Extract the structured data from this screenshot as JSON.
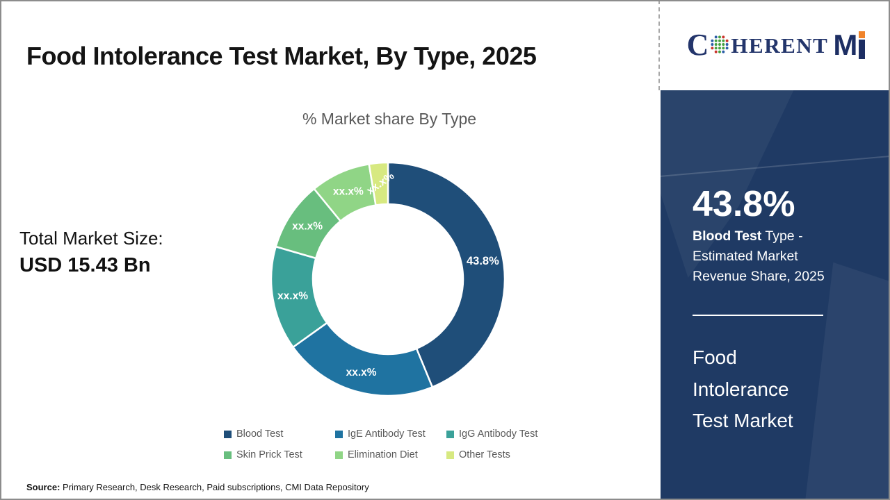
{
  "page": {
    "title": "Food Intolerance Test Market, By Type, 2025",
    "source_label": "Source:",
    "source_text": " Primary Research, Desk Research, Paid subscriptions, CMI Data Repository"
  },
  "stats": {
    "total_label": "Total Market Size:",
    "total_value": "USD 15.43 Bn"
  },
  "logo": {
    "prefix": "C",
    "suffix": "HERENT",
    "brand_bold": "M",
    "globe_icon": "dotted-globe-icon",
    "navy": "#23356b",
    "orange": "#f0832a"
  },
  "chart_data": {
    "type": "donut",
    "title": "% Market share By Type",
    "legend_position": "bottom",
    "value_labels_masked": "all segments show xx.x% except Blood Test",
    "segments": [
      {
        "label": "Blood Test",
        "display_value": "43.8%",
        "share_pct_est": 43.8,
        "color": "#1F4E79"
      },
      {
        "label": "IgE Antibody Test",
        "display_value": "xx.x%",
        "share_pct_est": 21.3,
        "color": "#1F73A1"
      },
      {
        "label": "IgG Antibody Test",
        "display_value": "xx.x%",
        "share_pct_est": 14.4,
        "color": "#3AA199"
      },
      {
        "label": "Skin Prick Test",
        "display_value": "xx.x%",
        "share_pct_est": 9.6,
        "color": "#68BE7E"
      },
      {
        "label": "Elimination Diet",
        "display_value": "xx.x%",
        "share_pct_est": 8.3,
        "color": "#90D586"
      },
      {
        "label": "Other Tests",
        "display_value": "xx.x%",
        "share_pct_est": 2.6,
        "color": "#D7E981",
        "label_rotation_deg": -35
      }
    ]
  },
  "side_panel": {
    "bg_color": "#1F3A64",
    "headline_value": "43.8%",
    "subtitle_bold": "Blood Test",
    "subtitle_line1_rest": " Type -",
    "subtitle_line2": "Estimated Market",
    "subtitle_line3": "Revenue Share, 2025",
    "market_name_lines": [
      "Food",
      "Intolerance",
      "Test Market"
    ]
  }
}
